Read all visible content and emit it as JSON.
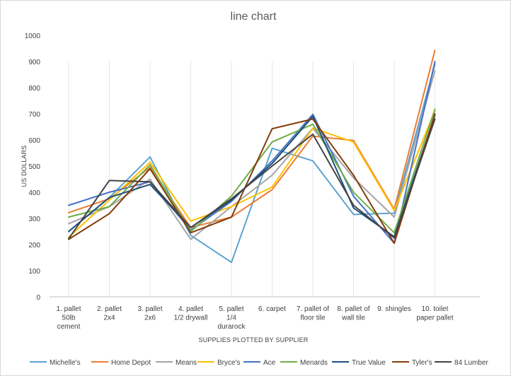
{
  "chart_data": {
    "type": "line",
    "title": "line chart",
    "xlabel": "SUPPLIES PLOTTED BY SUPPLIER",
    "ylabel": "US DOLLARS",
    "ylim": [
      0,
      1000
    ],
    "yticks": [
      0,
      100,
      200,
      300,
      400,
      500,
      600,
      700,
      800,
      900,
      1000
    ],
    "grid": "vertical",
    "legend": "bottom",
    "categories": [
      [
        "1. pallet",
        "50lb",
        "cement"
      ],
      [
        "2. pallet",
        "2x4"
      ],
      [
        "3. pallet",
        "2x6"
      ],
      [
        "4. pallet",
        "1/2 drywall"
      ],
      [
        "5. pallet",
        "1/4",
        "durarock"
      ],
      [
        "6. carpet"
      ],
      [
        "7. pallet of",
        "floor tile"
      ],
      [
        "8. pallet of",
        "wall tile"
      ],
      [
        "9. shingles"
      ],
      [
        "10. toilet",
        "paper pallet"
      ]
    ],
    "series": [
      {
        "name": "Michelle's",
        "color": "#5ba3d0",
        "values": [
          250,
          380,
          535,
          235,
          132,
          568,
          520,
          315,
          320,
          890
        ]
      },
      {
        "name": "Home Depot",
        "color": "#ed7d31",
        "values": [
          322,
          375,
          495,
          265,
          305,
          410,
          615,
          598,
          335,
          943
        ]
      },
      {
        "name": "Means",
        "color": "#a5a5a5",
        "values": [
          280,
          345,
          450,
          220,
          345,
          465,
          645,
          455,
          305,
          865
        ]
      },
      {
        "name": "Bryce's",
        "color": "#ffc000",
        "values": [
          228,
          370,
          515,
          290,
          345,
          420,
          645,
          592,
          330,
          712
        ]
      },
      {
        "name": "Ace",
        "color": "#4472c4",
        "values": [
          350,
          400,
          440,
          255,
          365,
          520,
          698,
          385,
          205,
          900
        ]
      },
      {
        "name": "Menards",
        "color": "#70ad47",
        "values": [
          305,
          345,
          505,
          250,
          385,
          592,
          660,
          400,
          245,
          718
        ]
      },
      {
        "name": "True Value",
        "color": "#1f4e79",
        "values": [
          250,
          380,
          430,
          265,
          370,
          510,
          690,
          340,
          230,
          695
        ]
      },
      {
        "name": "Tyler's",
        "color": "#843c0c",
        "values": [
          220,
          318,
          490,
          245,
          305,
          643,
          680,
          465,
          205,
          700
        ]
      },
      {
        "name": "84 Lumber",
        "color": "#444444",
        "values": [
          222,
          445,
          440,
          265,
          375,
          500,
          622,
          350,
          225,
          680
        ]
      }
    ]
  }
}
